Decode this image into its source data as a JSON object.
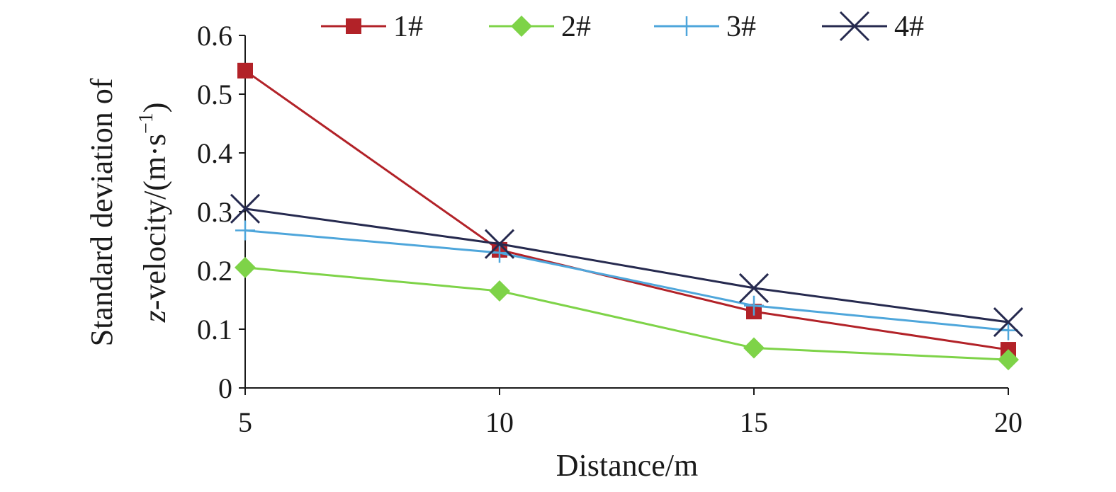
{
  "chart_data": {
    "type": "line",
    "title": "",
    "xlabel": "Distance/m",
    "ylabel_line1": "Standard deviation of",
    "ylabel_line2_italic": "z",
    "ylabel_line2_rest": "-velocity/(m·s",
    "ylabel_sup": "−1",
    "ylabel_close": ")",
    "x": [
      5,
      10,
      15,
      20
    ],
    "x_tick_labels": [
      "5",
      "10",
      "15",
      "20"
    ],
    "y_tick_labels": [
      "0",
      "0.1",
      "0.2",
      "0.3",
      "0.4",
      "0.5",
      "0.6"
    ],
    "y_ticks": [
      0,
      0.1,
      0.2,
      0.3,
      0.4,
      0.5,
      0.6
    ],
    "xlim": [
      5,
      20
    ],
    "ylim": [
      0,
      0.6
    ],
    "grid": false,
    "legend_position": "top",
    "series": [
      {
        "name": "1#",
        "marker": "square",
        "color": "#b22228",
        "values": [
          0.54,
          0.235,
          0.13,
          0.065
        ]
      },
      {
        "name": "2#",
        "marker": "diamond",
        "color": "#7ed348",
        "values": [
          0.205,
          0.165,
          0.068,
          0.048
        ]
      },
      {
        "name": "3#",
        "marker": "plus",
        "color": "#4ea6db",
        "values": [
          0.268,
          0.23,
          0.14,
          0.098
        ]
      },
      {
        "name": "4#",
        "marker": "cross",
        "color": "#262a4f",
        "values": [
          0.305,
          0.245,
          0.17,
          0.112
        ]
      }
    ]
  }
}
